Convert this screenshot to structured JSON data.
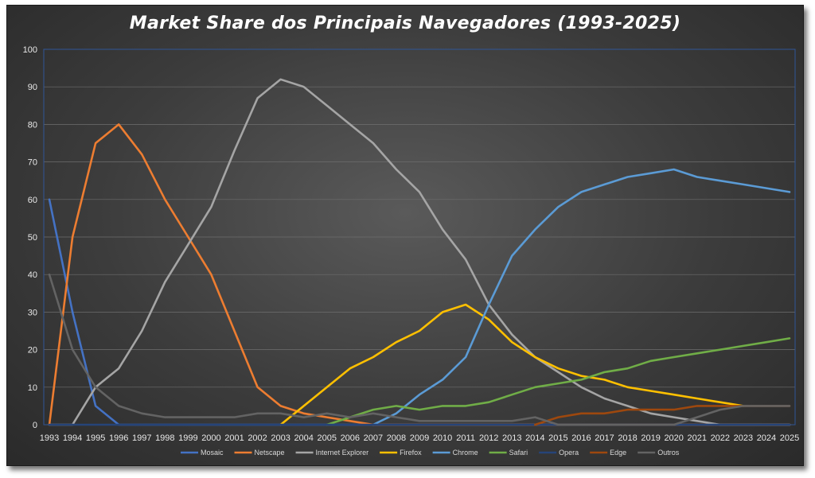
{
  "chart_data": {
    "type": "line",
    "title": "Market Share dos Principais Navegadores (1993-2025)",
    "xlabel": "",
    "ylabel": "",
    "ylim": [
      0,
      100
    ],
    "yticks": [
      0,
      10,
      20,
      30,
      40,
      50,
      60,
      70,
      80,
      90,
      100
    ],
    "grid": true,
    "legend_position": "bottom",
    "x": [
      "1993",
      "1994",
      "1995",
      "1996",
      "1997",
      "1998",
      "1999",
      "2000",
      "2001",
      "2002",
      "2003",
      "2004",
      "2005",
      "2006",
      "2007",
      "2008",
      "2009",
      "2010",
      "2011",
      "2012",
      "2013",
      "2014",
      "2015",
      "2016",
      "2017",
      "2018",
      "2019",
      "2020",
      "2021",
      "2022",
      "2023",
      "2024",
      "2025"
    ],
    "series": [
      {
        "name": "Mosaic",
        "color": "#4472c4",
        "values": [
          60,
          30,
          5,
          0,
          0,
          0,
          0,
          0,
          0,
          0,
          0,
          0,
          0,
          0,
          0,
          0,
          0,
          0,
          0,
          0,
          0,
          0,
          0,
          0,
          0,
          0,
          0,
          0,
          0,
          0,
          0,
          0,
          0
        ]
      },
      {
        "name": "Netscape",
        "color": "#ed7d31",
        "values": [
          0,
          50,
          75,
          80,
          72,
          60,
          50,
          40,
          25,
          10,
          5,
          3,
          2,
          1,
          0,
          0,
          0,
          0,
          0,
          0,
          0,
          0,
          0,
          0,
          0,
          0,
          0,
          0,
          0,
          0,
          0,
          0,
          0
        ]
      },
      {
        "name": "Internet Explorer",
        "color": "#a5a5a5",
        "values": [
          0,
          0,
          10,
          15,
          25,
          38,
          48,
          58,
          73,
          87,
          92,
          90,
          85,
          80,
          75,
          68,
          62,
          52,
          44,
          32,
          24,
          18,
          14,
          10,
          7,
          5,
          3,
          2,
          1,
          0,
          0,
          0,
          0
        ]
      },
      {
        "name": "Firefox",
        "color": "#ffc000",
        "values": [
          null,
          null,
          null,
          null,
          null,
          null,
          null,
          null,
          null,
          null,
          0,
          5,
          10,
          15,
          18,
          22,
          25,
          30,
          32,
          28,
          22,
          18,
          15,
          13,
          12,
          10,
          9,
          8,
          7,
          6,
          5,
          null,
          null
        ]
      },
      {
        "name": "Chrome",
        "color": "#5b9bd5",
        "values": [
          null,
          null,
          null,
          null,
          null,
          null,
          null,
          null,
          null,
          null,
          null,
          null,
          null,
          null,
          0,
          3,
          8,
          12,
          18,
          32,
          45,
          52,
          58,
          62,
          64,
          66,
          67,
          68,
          66,
          65,
          64,
          63,
          62
        ]
      },
      {
        "name": "Safari",
        "color": "#70ad47",
        "values": [
          null,
          null,
          null,
          null,
          null,
          null,
          null,
          null,
          null,
          null,
          null,
          null,
          0,
          2,
          4,
          5,
          4,
          5,
          5,
          6,
          8,
          10,
          11,
          12,
          14,
          15,
          17,
          18,
          19,
          20,
          21,
          22,
          23
        ]
      },
      {
        "name": "Opera",
        "color": "#264478",
        "values": [
          0,
          0,
          0,
          0,
          0,
          0,
          0,
          0,
          0,
          0,
          0,
          0,
          0,
          0,
          0,
          0,
          0,
          0,
          0,
          0,
          0,
          0,
          0,
          0,
          0,
          0,
          0,
          0,
          0,
          0,
          0,
          0,
          0
        ]
      },
      {
        "name": "Edge",
        "color": "#9e480e",
        "values": [
          null,
          null,
          null,
          null,
          null,
          null,
          null,
          null,
          null,
          null,
          null,
          null,
          null,
          null,
          null,
          null,
          null,
          null,
          null,
          null,
          null,
          0,
          2,
          3,
          3,
          4,
          4,
          4,
          5,
          5,
          5,
          5,
          5
        ]
      },
      {
        "name": "Outros",
        "color": "#636363",
        "values": [
          40,
          20,
          10,
          5,
          3,
          2,
          2,
          2,
          2,
          3,
          3,
          2,
          3,
          2,
          3,
          2,
          1,
          1,
          1,
          1,
          1,
          2,
          0,
          0,
          0,
          0,
          0,
          0,
          2,
          4,
          5,
          5,
          5
        ]
      }
    ]
  }
}
